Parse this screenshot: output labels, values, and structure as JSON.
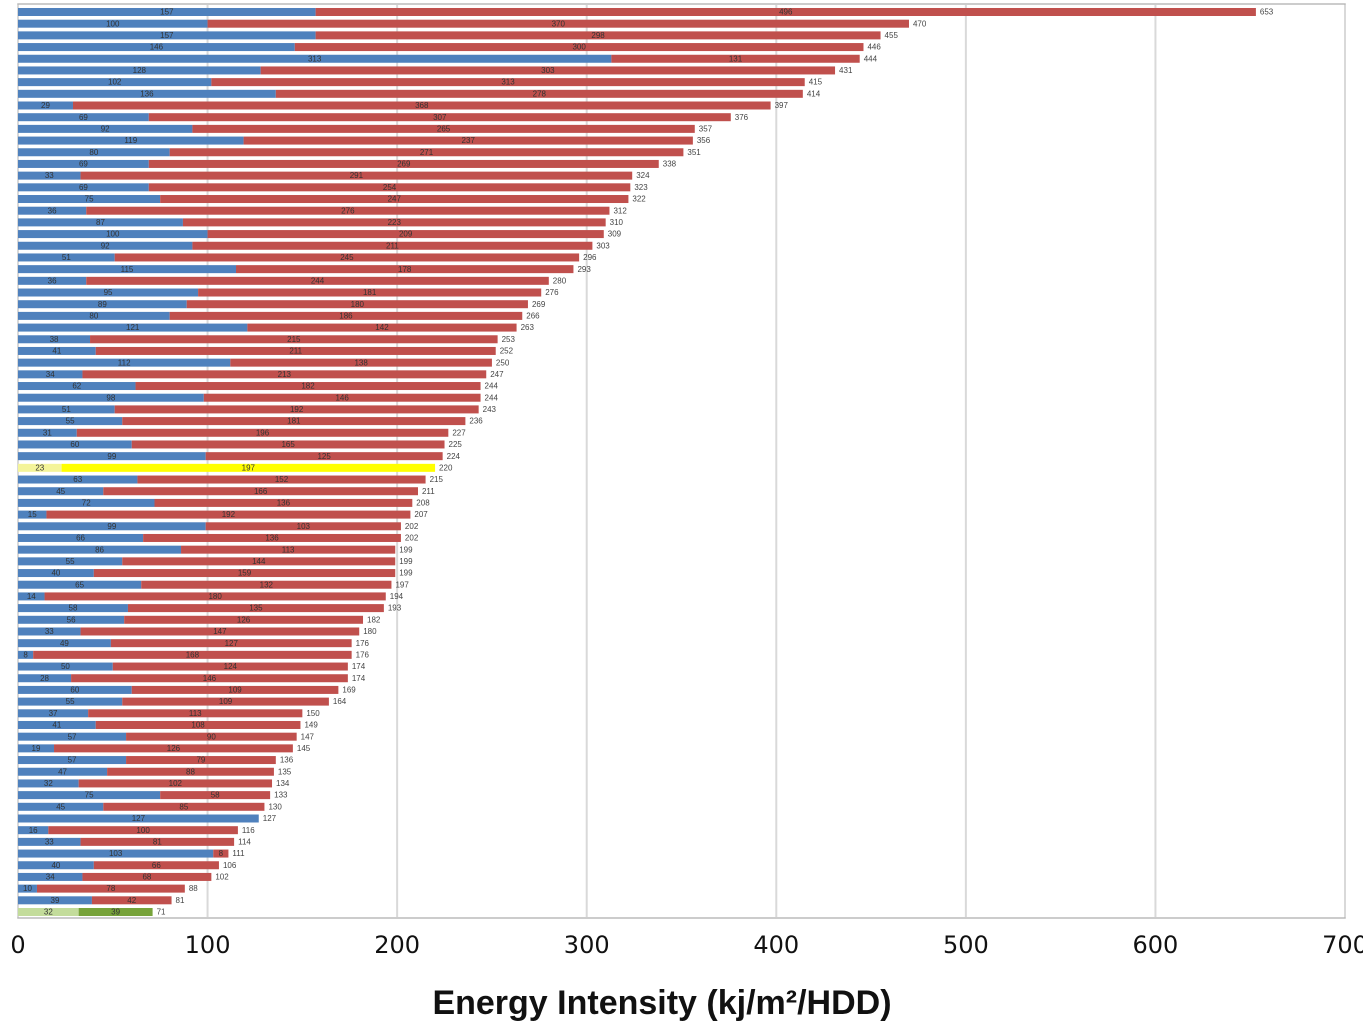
{
  "chart_data": {
    "type": "stacked-barh",
    "x_label": "Energy Intensity (kj/m²/HDD)",
    "xlim": [
      0,
      700
    ],
    "xticks": [
      0,
      100,
      200,
      300,
      400,
      500,
      600,
      700
    ],
    "grid": true,
    "series": [
      {
        "color": "#4f81bd",
        "point_colors": {
          "39": "#f4f49a",
          "77": "#c3dc9b"
        },
        "values": [
          157,
          100,
          157,
          146,
          313,
          128,
          102,
          136,
          29,
          69,
          92,
          119,
          80,
          69,
          33,
          69,
          75,
          36,
          87,
          100,
          92,
          51,
          115,
          36,
          95,
          89,
          80,
          121,
          38,
          41,
          112,
          34,
          62,
          98,
          51,
          55,
          31,
          60,
          99,
          23,
          63,
          45,
          72,
          15,
          99,
          66,
          86,
          55,
          40,
          65,
          14,
          58,
          56,
          33,
          49,
          8,
          50,
          28,
          60,
          55,
          37,
          41,
          57,
          19,
          57,
          47,
          32,
          75,
          45,
          127,
          16,
          33,
          103,
          40,
          34,
          10,
          39,
          32
        ]
      },
      {
        "color": "#c0504d",
        "point_colors": {
          "39": "#ffff00",
          "77": "#77a33a"
        },
        "values": [
          496,
          370,
          298,
          300,
          131,
          303,
          313,
          278,
          368,
          307,
          265,
          237,
          271,
          269,
          291,
          254,
          247,
          276,
          223,
          209,
          211,
          245,
          178,
          244,
          181,
          180,
          186,
          142,
          215,
          211,
          138,
          213,
          182,
          146,
          192,
          181,
          196,
          165,
          125,
          197,
          152,
          166,
          136,
          192,
          103,
          136,
          113,
          144,
          159,
          132,
          180,
          135,
          126,
          147,
          127,
          168,
          124,
          146,
          109,
          109,
          113,
          108,
          90,
          126,
          79,
          88,
          102,
          58,
          85,
          null,
          100,
          81,
          8,
          66,
          68,
          78,
          42,
          39
        ]
      }
    ],
    "totals": [
      653,
      470,
      455,
      446,
      444,
      431,
      415,
      414,
      397,
      376,
      357,
      356,
      351,
      338,
      324,
      323,
      322,
      312,
      310,
      309,
      303,
      296,
      293,
      280,
      276,
      269,
      266,
      263,
      253,
      252,
      250,
      247,
      244,
      244,
      243,
      236,
      227,
      225,
      224,
      220,
      215,
      211,
      208,
      207,
      202,
      202,
      199,
      199,
      199,
      197,
      194,
      193,
      182,
      180,
      176,
      176,
      174,
      174,
      169,
      164,
      150,
      149,
      147,
      145,
      136,
      135,
      134,
      133,
      130,
      127,
      116,
      114,
      111,
      106,
      102,
      88,
      81,
      71
    ]
  }
}
